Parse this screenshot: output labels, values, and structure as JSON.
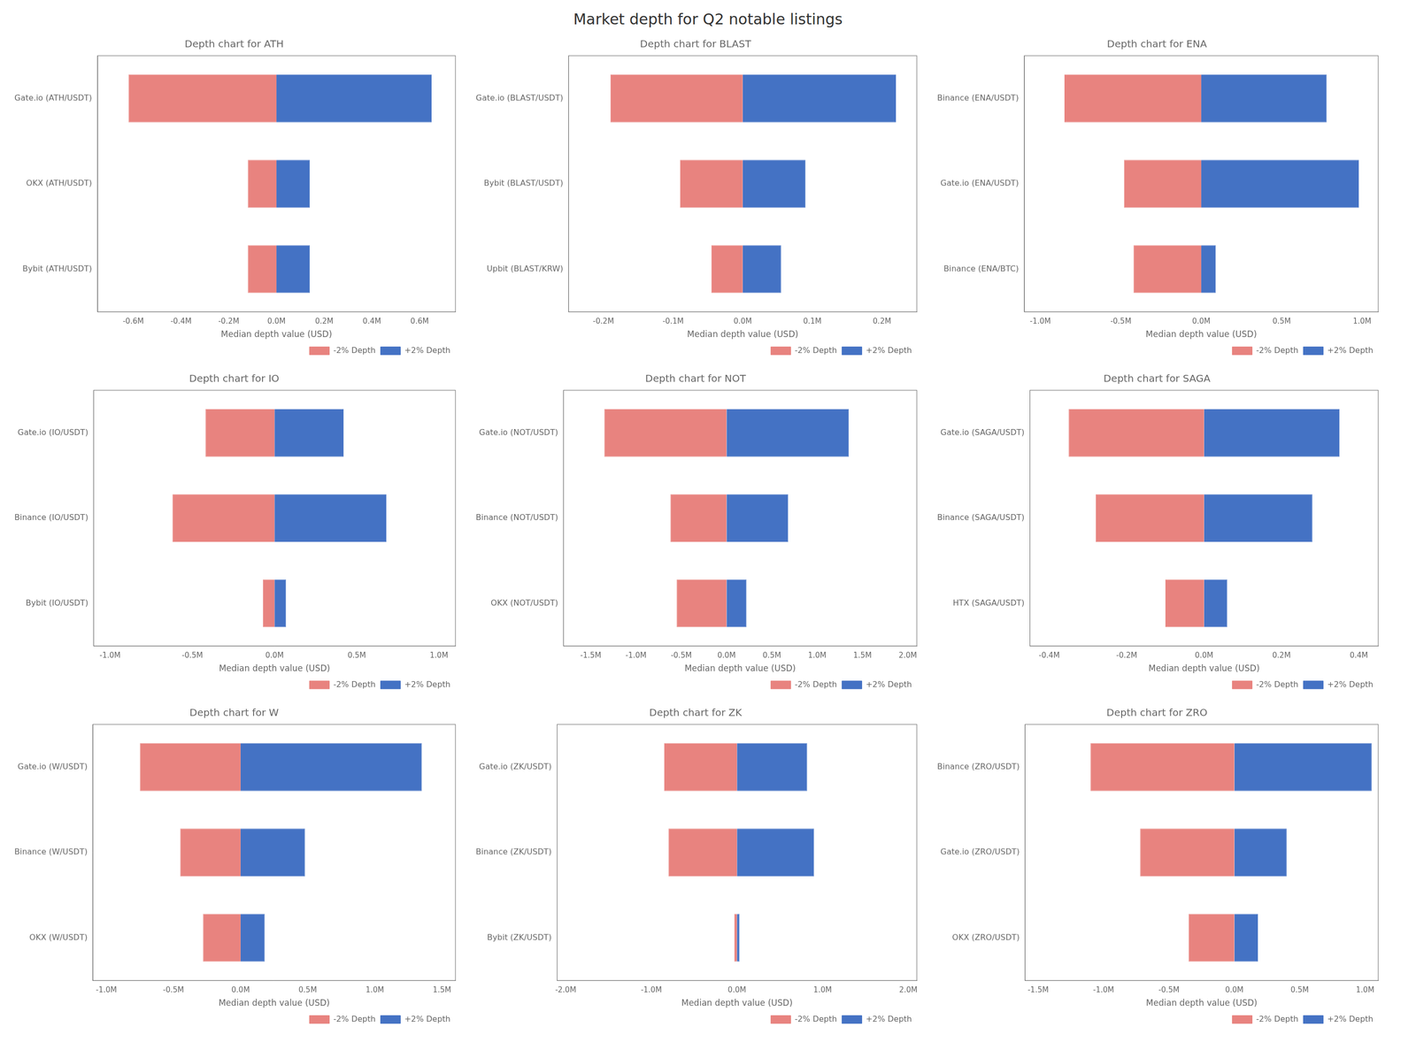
{
  "title": "Market depth for Q2 notable listings",
  "chart_data": [
    {
      "type": "bar",
      "orientation": "horizontal",
      "stacked": true,
      "grid": false,
      "legend": "lower right",
      "title": "Depth chart for ATH",
      "xlabel": "Median depth value (USD)",
      "categories": [
        "Gate.io (ATH/USDT)",
        "OKX (ATH/USDT)",
        "Bybit (ATH/USDT)"
      ],
      "series": [
        {
          "name": "-2% Depth",
          "color": "#E8837F",
          "values": [
            -0.62,
            -0.12,
            -0.12
          ]
        },
        {
          "name": "+2% Depth",
          "color": "#4472C4",
          "values": [
            0.65,
            0.14,
            0.14
          ]
        }
      ],
      "xlim": [
        -0.75,
        0.75
      ],
      "xticks": [
        {
          "value": -0.6,
          "label": "-0.6M"
        },
        {
          "value": -0.4,
          "label": "-0.4M"
        },
        {
          "value": -0.2,
          "label": "-0.2M"
        },
        {
          "value": 0.0,
          "label": "0.0M"
        },
        {
          "value": 0.2,
          "label": "0.2M"
        },
        {
          "value": 0.4,
          "label": "0.4M"
        },
        {
          "value": 0.6,
          "label": "0.6M"
        }
      ]
    },
    {
      "type": "bar",
      "orientation": "horizontal",
      "stacked": true,
      "grid": false,
      "legend": "lower right",
      "title": "Depth chart for BLAST",
      "xlabel": "Median depth value (USD)",
      "categories": [
        "Gate.io (BLAST/USDT)",
        "Bybit (BLAST/USDT)",
        "Upbit (BLAST/KRW)"
      ],
      "series": [
        {
          "name": "-2% Depth",
          "color": "#E8837F",
          "values": [
            -0.19,
            -0.09,
            -0.045
          ]
        },
        {
          "name": "+2% Depth",
          "color": "#4472C4",
          "values": [
            0.22,
            0.09,
            0.055
          ]
        }
      ],
      "xlim": [
        -0.25,
        0.25
      ],
      "xticks": [
        {
          "value": -0.2,
          "label": "-0.2M"
        },
        {
          "value": -0.1,
          "label": "-0.1M"
        },
        {
          "value": 0.0,
          "label": "0.0M"
        },
        {
          "value": 0.1,
          "label": "0.1M"
        },
        {
          "value": 0.2,
          "label": "0.2M"
        }
      ]
    },
    {
      "type": "bar",
      "orientation": "horizontal",
      "stacked": true,
      "grid": false,
      "legend": "lower right",
      "title": "Depth chart for ENA",
      "xlabel": "Median depth value (USD)",
      "categories": [
        "Binance (ENA/USDT)",
        "Gate.io (ENA/USDT)",
        "Binance (ENA/BTC)"
      ],
      "series": [
        {
          "name": "-2% Depth",
          "color": "#E8837F",
          "values": [
            -0.85,
            -0.48,
            -0.42
          ]
        },
        {
          "name": "+2% Depth",
          "color": "#4472C4",
          "values": [
            0.78,
            0.98,
            0.09
          ]
        }
      ],
      "xlim": [
        -1.1,
        1.1
      ],
      "xticks": [
        {
          "value": -1.0,
          "label": "-1.0M"
        },
        {
          "value": -0.5,
          "label": "-0.5M"
        },
        {
          "value": 0.0,
          "label": "0.0M"
        },
        {
          "value": 0.5,
          "label": "0.5M"
        },
        {
          "value": 1.0,
          "label": "1.0M"
        }
      ]
    },
    {
      "type": "bar",
      "orientation": "horizontal",
      "stacked": true,
      "grid": false,
      "legend": "lower right",
      "title": "Depth chart for IO",
      "xlabel": "Median depth value (USD)",
      "categories": [
        "Gate.io (IO/USDT)",
        "Binance (IO/USDT)",
        "Bybit (IO/USDT)"
      ],
      "series": [
        {
          "name": "-2% Depth",
          "color": "#E8837F",
          "values": [
            -0.42,
            -0.62,
            -0.07
          ]
        },
        {
          "name": "+2% Depth",
          "color": "#4472C4",
          "values": [
            0.42,
            0.68,
            0.07
          ]
        }
      ],
      "xlim": [
        -1.1,
        1.1
      ],
      "xticks": [
        {
          "value": -1.0,
          "label": "-1.0M"
        },
        {
          "value": -0.5,
          "label": "-0.5M"
        },
        {
          "value": 0.0,
          "label": "0.0M"
        },
        {
          "value": 0.5,
          "label": "0.5M"
        },
        {
          "value": 1.0,
          "label": "1.0M"
        }
      ]
    },
    {
      "type": "bar",
      "orientation": "horizontal",
      "stacked": true,
      "grid": false,
      "legend": "lower right",
      "title": "Depth chart for NOT",
      "xlabel": "Median depth value (USD)",
      "categories": [
        "Gate.io (NOT/USDT)",
        "Binance (NOT/USDT)",
        "OKX (NOT/USDT)"
      ],
      "series": [
        {
          "name": "-2% Depth",
          "color": "#E8837F",
          "values": [
            -1.35,
            -0.62,
            -0.55
          ]
        },
        {
          "name": "+2% Depth",
          "color": "#4472C4",
          "values": [
            1.35,
            0.68,
            0.22
          ]
        }
      ],
      "xlim": [
        -1.8,
        2.1
      ],
      "xticks": [
        {
          "value": -1.5,
          "label": "-1.5M"
        },
        {
          "value": -1.0,
          "label": "-1.0M"
        },
        {
          "value": -0.5,
          "label": "-0.5M"
        },
        {
          "value": 0.0,
          "label": "0.0M"
        },
        {
          "value": 0.5,
          "label": "0.5M"
        },
        {
          "value": 1.0,
          "label": "1.0M"
        },
        {
          "value": 1.5,
          "label": "1.5M"
        },
        {
          "value": 2.0,
          "label": "2.0M"
        }
      ]
    },
    {
      "type": "bar",
      "orientation": "horizontal",
      "stacked": true,
      "grid": false,
      "legend": "lower right",
      "title": "Depth chart for SAGA",
      "xlabel": "Median depth value (USD)",
      "categories": [
        "Gate.io (SAGA/USDT)",
        "Binance (SAGA/USDT)",
        "HTX (SAGA/USDT)"
      ],
      "series": [
        {
          "name": "-2% Depth",
          "color": "#E8837F",
          "values": [
            -0.35,
            -0.28,
            -0.1
          ]
        },
        {
          "name": "+2% Depth",
          "color": "#4472C4",
          "values": [
            0.35,
            0.28,
            0.06
          ]
        }
      ],
      "xlim": [
        -0.45,
        0.45
      ],
      "xticks": [
        {
          "value": -0.4,
          "label": "-0.4M"
        },
        {
          "value": -0.2,
          "label": "-0.2M"
        },
        {
          "value": 0.0,
          "label": "0.0M"
        },
        {
          "value": 0.2,
          "label": "0.2M"
        },
        {
          "value": 0.4,
          "label": "0.4M"
        }
      ]
    },
    {
      "type": "bar",
      "orientation": "horizontal",
      "stacked": true,
      "grid": false,
      "legend": "lower right",
      "title": "Depth chart for W",
      "xlabel": "Median depth value (USD)",
      "categories": [
        "Gate.io (W/USDT)",
        "Binance (W/USDT)",
        "OKX (W/USDT)"
      ],
      "series": [
        {
          "name": "-2% Depth",
          "color": "#E8837F",
          "values": [
            -0.75,
            -0.45,
            -0.28
          ]
        },
        {
          "name": "+2% Depth",
          "color": "#4472C4",
          "values": [
            1.35,
            0.48,
            0.18
          ]
        }
      ],
      "xlim": [
        -1.1,
        1.6
      ],
      "xticks": [
        {
          "value": -1.0,
          "label": "-1.0M"
        },
        {
          "value": -0.5,
          "label": "-0.5M"
        },
        {
          "value": 0.0,
          "label": "0.0M"
        },
        {
          "value": 0.5,
          "label": "0.5M"
        },
        {
          "value": 1.0,
          "label": "1.0M"
        },
        {
          "value": 1.5,
          "label": "1.5M"
        }
      ]
    },
    {
      "type": "bar",
      "orientation": "horizontal",
      "stacked": true,
      "grid": false,
      "legend": "lower right",
      "title": "Depth chart for ZK",
      "xlabel": "Median depth value (USD)",
      "categories": [
        "Gate.io (ZK/USDT)",
        "Binance (ZK/USDT)",
        "Bybit (ZK/USDT)"
      ],
      "series": [
        {
          "name": "-2% Depth",
          "color": "#E8837F",
          "values": [
            -0.85,
            -0.8,
            -0.03
          ]
        },
        {
          "name": "+2% Depth",
          "color": "#4472C4",
          "values": [
            0.82,
            0.9,
            0.03
          ]
        }
      ],
      "xlim": [
        -2.1,
        2.1
      ],
      "xticks": [
        {
          "value": -2.0,
          "label": "-2.0M"
        },
        {
          "value": -1.0,
          "label": "-1.0M"
        },
        {
          "value": 0.0,
          "label": "0.0M"
        },
        {
          "value": 1.0,
          "label": "1.0M"
        },
        {
          "value": 2.0,
          "label": "2.0M"
        }
      ]
    },
    {
      "type": "bar",
      "orientation": "horizontal",
      "stacked": true,
      "grid": false,
      "legend": "lower right",
      "title": "Depth chart for ZRO",
      "xlabel": "Median depth value (USD)",
      "categories": [
        "Binance (ZRO/USDT)",
        "Gate.io (ZRO/USDT)",
        "OKX (ZRO/USDT)"
      ],
      "series": [
        {
          "name": "-2% Depth",
          "color": "#E8837F",
          "values": [
            -1.1,
            -0.72,
            -0.35
          ]
        },
        {
          "name": "+2% Depth",
          "color": "#4472C4",
          "values": [
            1.05,
            0.4,
            0.18
          ]
        }
      ],
      "xlim": [
        -1.6,
        1.1
      ],
      "xticks": [
        {
          "value": -1.5,
          "label": "-1.5M"
        },
        {
          "value": -1.0,
          "label": "-1.0M"
        },
        {
          "value": -0.5,
          "label": "-0.5M"
        },
        {
          "value": 0.0,
          "label": "0.0M"
        },
        {
          "value": 0.5,
          "label": "0.5M"
        },
        {
          "value": 1.0,
          "label": "1.0M"
        }
      ]
    }
  ]
}
